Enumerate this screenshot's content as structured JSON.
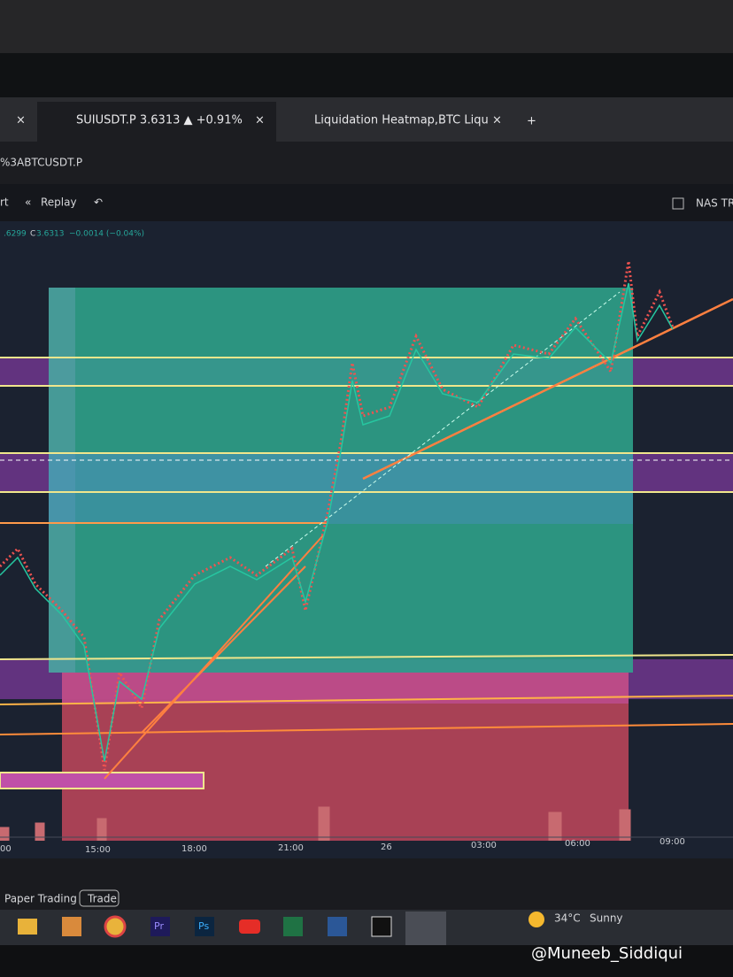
{
  "tabs": [
    {
      "close": "×"
    },
    {
      "title": "SUIUSDT.P 3.6313 ▲ +0.91%",
      "close": "×"
    },
    {
      "title": "Liquidation Heatmap,BTC Liqu",
      "close": "×"
    }
  ],
  "new_tab": "+",
  "address": "%3ABTCUSDT.P",
  "toolbar": {
    "left": "rt",
    "replay": "Replay",
    "right": "NAS TRA"
  },
  "legend": {
    "open_partial": ".6299",
    "close_label": "C",
    "close": "3.6313",
    "change": "−0.0014 (−0.04%)"
  },
  "time_axis": [
    "00",
    "15:00",
    "18:00",
    "21:00",
    "26",
    "03:00",
    "06:00",
    "09:00"
  ],
  "bottom_panel": {
    "paper_trading": "Paper Trading",
    "trade": "Trade"
  },
  "taskbar": {
    "apps": [
      "Pr",
      "Ps"
    ],
    "temperature": "34°C",
    "weather": "Sunny"
  },
  "watermark": "@Muneeb_Siddiqui"
}
